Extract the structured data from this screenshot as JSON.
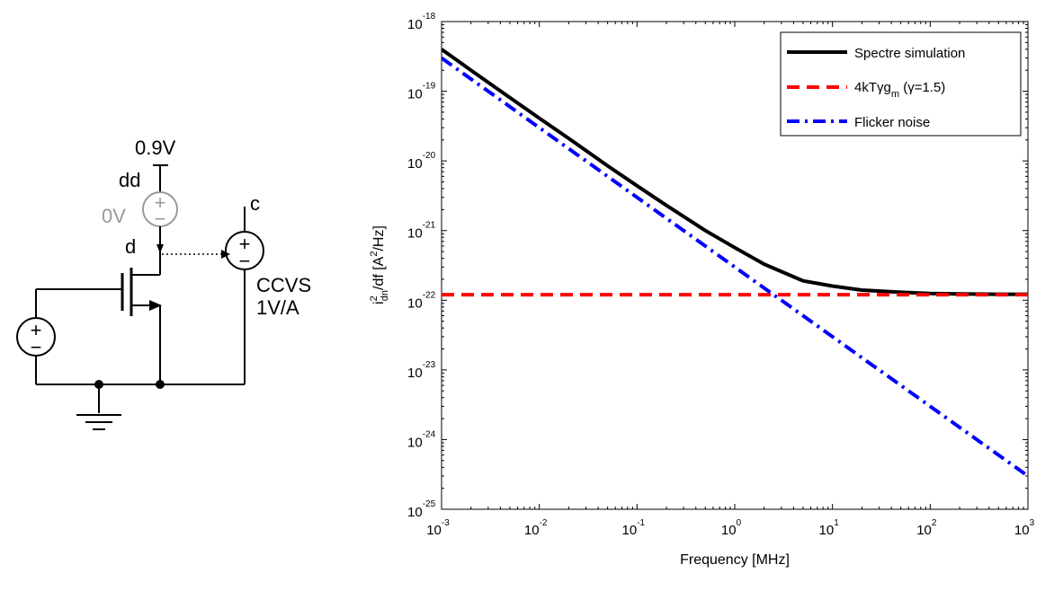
{
  "schematic": {
    "vdd_value": "0.9V",
    "vdd_node": "dd",
    "ammeter_value": "0V",
    "drain_node": "d",
    "output_node": "c",
    "ccvs_name": "CCVS",
    "ccvs_gain": "1V/A",
    "plus_symbol": "+",
    "minus_symbol": "−"
  },
  "chart_data": {
    "type": "line",
    "xlabel": "Frequency [MHz]",
    "ylabel_parts": {
      "base": "i",
      "sup": "2",
      "sub": "dn",
      "rest": "/df  [A",
      "unit_sup": "2",
      "tail": "/Hz]"
    },
    "x_scale": "log",
    "y_scale": "log",
    "xlim": [
      0.001,
      1000
    ],
    "ylim": [
      1e-25,
      1e-18
    ],
    "x_ticks": [
      {
        "base": "10",
        "exp": "-3"
      },
      {
        "base": "10",
        "exp": "-2"
      },
      {
        "base": "10",
        "exp": "-1"
      },
      {
        "base": "10",
        "exp": "0"
      },
      {
        "base": "10",
        "exp": "1"
      },
      {
        "base": "10",
        "exp": "2"
      },
      {
        "base": "10",
        "exp": "3"
      }
    ],
    "y_ticks": [
      {
        "base": "10",
        "exp": "-25"
      },
      {
        "base": "10",
        "exp": "-24"
      },
      {
        "base": "10",
        "exp": "-23"
      },
      {
        "base": "10",
        "exp": "-22"
      },
      {
        "base": "10",
        "exp": "-21"
      },
      {
        "base": "10",
        "exp": "-20"
      },
      {
        "base": "10",
        "exp": "-19"
      },
      {
        "base": "10",
        "exp": "-18"
      }
    ],
    "grid": false,
    "legend_position": "top-right",
    "series": [
      {
        "name": "Spectre simulation",
        "color": "#000000",
        "dash": "solid",
        "x": [
          0.001,
          0.002,
          0.005,
          0.01,
          0.02,
          0.05,
          0.1,
          0.2,
          0.5,
          1,
          2,
          5,
          10,
          20,
          50,
          100,
          200,
          500,
          1000
        ],
        "y": [
          4e-19,
          2e-19,
          8.1e-20,
          4.1e-20,
          2.1e-20,
          8.5e-21,
          4.4e-21,
          2.3e-21,
          1e-21,
          5.7e-22,
          3.3e-22,
          1.9e-22,
          1.6e-22,
          1.4e-22,
          1.3e-22,
          1.25e-22,
          1.23e-22,
          1.22e-22,
          1.22e-22
        ]
      },
      {
        "name_parts": {
          "main": "4kTγg",
          "sub": "m",
          "tail": " (γ=1.5)"
        },
        "color": "#ff0000",
        "dash": "dashed",
        "x": [
          0.001,
          1000
        ],
        "y": [
          1.2e-22,
          1.2e-22
        ]
      },
      {
        "name": "Flicker noise",
        "color": "#0000ff",
        "dash": "dashdot",
        "x": [
          0.001,
          1000
        ],
        "y": [
          3e-19,
          3e-25
        ]
      }
    ]
  }
}
